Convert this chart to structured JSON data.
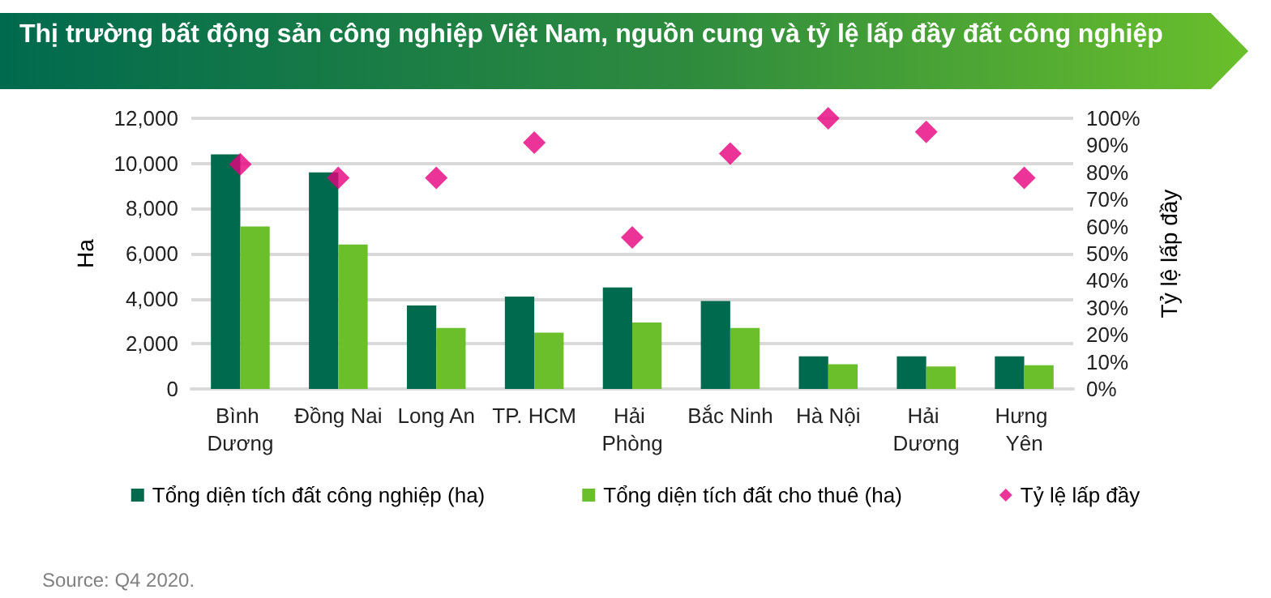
{
  "chart_data": {
    "type": "bar",
    "title": "Thị trường bất động sản công nghiệp Việt Nam, nguồn cung và tỷ lệ lấp đầy đất công nghiệp",
    "categories": [
      "Bình Dương",
      "Đồng Nai",
      "Long An",
      "TP. HCM",
      "Hải Phòng",
      "Bắc Ninh",
      "Hà Nội",
      "Hải Dương",
      "Hưng Yên"
    ],
    "series": [
      {
        "name": "Tổng diện tích đất công nghiệp (ha)",
        "color": "#006a4e",
        "values": [
          10400,
          9600,
          3700,
          4100,
          4500,
          3900,
          1450,
          1450,
          1450
        ]
      },
      {
        "name": "Tổng diện tích đất cho thuê (ha)",
        "color": "#6abf2b",
        "values": [
          7200,
          6400,
          2700,
          2500,
          2950,
          2700,
          1100,
          1000,
          1050
        ]
      },
      {
        "name": "Tỷ lệ lấp đầy",
        "type": "scatter",
        "axis": "y2",
        "color": "#e6007e",
        "marker": "diamond",
        "values": [
          83,
          78,
          78,
          91,
          56,
          87,
          100,
          95,
          78
        ]
      }
    ],
    "ylabel": "Ha",
    "y2label": "Tỷ lệ lấp đầy",
    "ylim": [
      0,
      12000
    ],
    "yticks": [
      {
        "value": 0,
        "label": "0"
      },
      {
        "value": 2000,
        "label": "2,000"
      },
      {
        "value": 4000,
        "label": "4,000"
      },
      {
        "value": 6000,
        "label": "6,000"
      },
      {
        "value": 8000,
        "label": "8,000"
      },
      {
        "value": 10000,
        "label": "10,000"
      },
      {
        "value": 12000,
        "label": "12,000"
      }
    ],
    "y2lim": [
      0,
      100
    ],
    "y2ticks": [
      {
        "value": 0,
        "label": "0%"
      },
      {
        "value": 10,
        "label": "10%"
      },
      {
        "value": 20,
        "label": "20%"
      },
      {
        "value": 30,
        "label": "30%"
      },
      {
        "value": 40,
        "label": "40%"
      },
      {
        "value": 50,
        "label": "50%"
      },
      {
        "value": 60,
        "label": "60%"
      },
      {
        "value": 70,
        "label": "70%"
      },
      {
        "value": 80,
        "label": "80%"
      },
      {
        "value": 90,
        "label": "90%"
      },
      {
        "value": 100,
        "label": "100%"
      }
    ],
    "grid": "y",
    "legend": "bottom",
    "annotations": [
      "Source: Q4 2020."
    ]
  }
}
